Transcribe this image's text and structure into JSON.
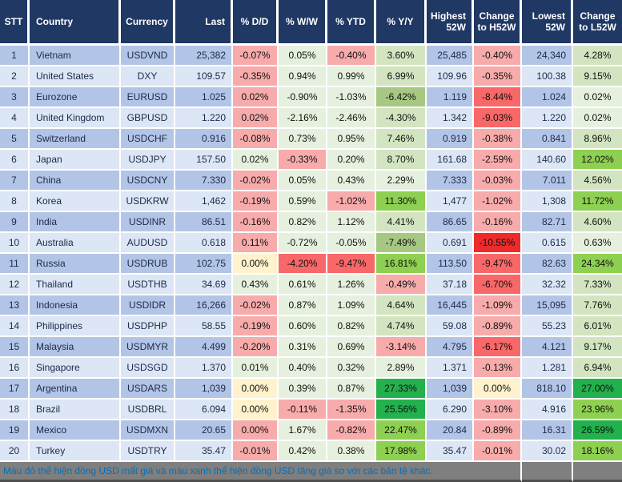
{
  "chart_data": {
    "type": "table",
    "columns": [
      "STT",
      "Country",
      "Currency",
      "Last",
      "% D/D",
      "% W/W",
      "% YTD",
      "% Y/Y",
      "Highest 52W",
      "Change to H52W",
      "Lowest 52W",
      "Change to L52W"
    ],
    "rows": [
      {
        "cells": [
          "1",
          "Vietnam",
          "USDVND",
          "25,382",
          "-0.07%",
          "0.05%",
          "-0.40%",
          "3.60%",
          "25,485",
          "-0.40%",
          "24,340",
          "4.28%"
        ],
        "colors": [
          "",
          "",
          "",
          "",
          "r1",
          "g1",
          "r1",
          "g2",
          "",
          "r1",
          "",
          "g2"
        ]
      },
      {
        "cells": [
          "2",
          "United States",
          "DXY",
          "109.57",
          "-0.35%",
          "0.94%",
          "0.99%",
          "6.99%",
          "109.96",
          "-0.35%",
          "100.38",
          "9.15%"
        ],
        "colors": [
          "",
          "",
          "",
          "",
          "r1",
          "g1",
          "g1",
          "g2",
          "",
          "r1",
          "",
          "g2"
        ]
      },
      {
        "cells": [
          "3",
          "Eurozone",
          "EURUSD",
          "1.025",
          "0.02%",
          "-0.90%",
          "-1.03%",
          "-6.42%",
          "1.119",
          "-8.44%",
          "1.024",
          "0.02%"
        ],
        "colors": [
          "",
          "",
          "",
          "",
          "r1",
          "g1",
          "g1",
          "g3",
          "",
          "r2",
          "",
          "g1"
        ]
      },
      {
        "cells": [
          "4",
          "United Kingdom",
          "GBPUSD",
          "1.220",
          "0.02%",
          "-2.16%",
          "-2.46%",
          "-4.30%",
          "1.342",
          "-9.03%",
          "1.220",
          "0.02%"
        ],
        "colors": [
          "",
          "",
          "",
          "",
          "r1",
          "g1",
          "g1",
          "g2",
          "",
          "r2",
          "",
          "g1"
        ]
      },
      {
        "cells": [
          "5",
          "Switzerland",
          "USDCHF",
          "0.916",
          "-0.08%",
          "0.73%",
          "0.95%",
          "7.46%",
          "0.919",
          "-0.38%",
          "0.841",
          "8.96%"
        ],
        "colors": [
          "",
          "",
          "",
          "",
          "r1",
          "g1",
          "g1",
          "g2",
          "",
          "r1",
          "",
          "g2"
        ]
      },
      {
        "cells": [
          "6",
          "Japan",
          "USDJPY",
          "157.50",
          "0.02%",
          "-0.33%",
          "0.20%",
          "8.70%",
          "161.68",
          "-2.59%",
          "140.60",
          "12.02%"
        ],
        "colors": [
          "",
          "",
          "",
          "",
          "g1",
          "r1",
          "g1",
          "g2",
          "",
          "r1",
          "",
          "g4"
        ]
      },
      {
        "cells": [
          "7",
          "China",
          "USDCNY",
          "7.330",
          "-0.02%",
          "0.05%",
          "0.43%",
          "2.29%",
          "7.333",
          "-0.03%",
          "7.011",
          "4.56%"
        ],
        "colors": [
          "",
          "",
          "",
          "",
          "r1",
          "g1",
          "g1",
          "g1",
          "",
          "r1",
          "",
          "g2"
        ]
      },
      {
        "cells": [
          "8",
          "Korea",
          "USDKRW",
          "1,462",
          "-0.19%",
          "0.59%",
          "-1.02%",
          "11.30%",
          "1,477",
          "-1.02%",
          "1,308",
          "11.72%"
        ],
        "colors": [
          "",
          "",
          "",
          "",
          "r1",
          "g1",
          "r1",
          "g4",
          "",
          "r1",
          "",
          "g4"
        ]
      },
      {
        "cells": [
          "9",
          "India",
          "USDINR",
          "86.51",
          "-0.16%",
          "0.82%",
          "1.12%",
          "4.41%",
          "86.65",
          "-0.16%",
          "82.71",
          "4.60%"
        ],
        "colors": [
          "",
          "",
          "",
          "",
          "r1",
          "g1",
          "g1",
          "g2",
          "",
          "r1",
          "",
          "g2"
        ]
      },
      {
        "cells": [
          "10",
          "Australia",
          "AUDUSD",
          "0.618",
          "0.11%",
          "-0.72%",
          "-0.05%",
          "-7.49%",
          "0.691",
          "-10.55%",
          "0.615",
          "0.63%"
        ],
        "colors": [
          "",
          "",
          "",
          "",
          "r1",
          "g1",
          "g1",
          "g3",
          "",
          "r3",
          "",
          "g1"
        ]
      },
      {
        "cells": [
          "11",
          "Russia",
          "USDRUB",
          "102.75",
          "0.00%",
          "-4.20%",
          "-9.47%",
          "16.81%",
          "113.50",
          "-9.47%",
          "82.63",
          "24.34%"
        ],
        "colors": [
          "",
          "",
          "",
          "",
          "y",
          "r2",
          "r2",
          "g4",
          "",
          "r2",
          "",
          "g4"
        ]
      },
      {
        "cells": [
          "12",
          "Thailand",
          "USDTHB",
          "34.69",
          "0.43%",
          "0.61%",
          "1.26%",
          "-0.49%",
          "37.18",
          "-6.70%",
          "32.32",
          "7.33%"
        ],
        "colors": [
          "",
          "",
          "",
          "",
          "g1",
          "g1",
          "g1",
          "r1",
          "",
          "r2",
          "",
          "g2"
        ]
      },
      {
        "cells": [
          "13",
          "Indonesia",
          "USDIDR",
          "16,266",
          "-0.02%",
          "0.87%",
          "1.09%",
          "4.64%",
          "16,445",
          "-1.09%",
          "15,095",
          "7.76%"
        ],
        "colors": [
          "",
          "",
          "",
          "",
          "r1",
          "g1",
          "g1",
          "g2",
          "",
          "r1",
          "",
          "g2"
        ]
      },
      {
        "cells": [
          "14",
          "Philippines",
          "USDPHP",
          "58.55",
          "-0.19%",
          "0.60%",
          "0.82%",
          "4.74%",
          "59.08",
          "-0.89%",
          "55.23",
          "6.01%"
        ],
        "colors": [
          "",
          "",
          "",
          "",
          "r1",
          "g1",
          "g1",
          "g2",
          "",
          "r1",
          "",
          "g2"
        ]
      },
      {
        "cells": [
          "15",
          "Malaysia",
          "USDMYR",
          "4.499",
          "-0.20%",
          "0.31%",
          "0.69%",
          "-3.14%",
          "4.795",
          "-6.17%",
          "4.121",
          "9.17%"
        ],
        "colors": [
          "",
          "",
          "",
          "",
          "r1",
          "g1",
          "g1",
          "r1",
          "",
          "r2",
          "",
          "g2"
        ]
      },
      {
        "cells": [
          "16",
          "Singapore",
          "USDSGD",
          "1.370",
          "0.01%",
          "0.40%",
          "0.32%",
          "2.89%",
          "1.371",
          "-0.13%",
          "1.281",
          "6.94%"
        ],
        "colors": [
          "",
          "",
          "",
          "",
          "g1",
          "g1",
          "g1",
          "g1",
          "",
          "r1",
          "",
          "g2"
        ]
      },
      {
        "cells": [
          "17",
          "Argentina",
          "USDARS",
          "1,039",
          "0.00%",
          "0.39%",
          "0.87%",
          "27.33%",
          "1,039",
          "0.00%",
          "818.10",
          "27.00%"
        ],
        "colors": [
          "",
          "",
          "",
          "",
          "y",
          "g1",
          "g1",
          "g5",
          "",
          "y",
          "",
          "g5"
        ]
      },
      {
        "cells": [
          "18",
          "Brazil",
          "USDBRL",
          "6.094",
          "0.00%",
          "-0.11%",
          "-1.35%",
          "25.56%",
          "6.290",
          "-3.10%",
          "4.916",
          "23.96%"
        ],
        "colors": [
          "",
          "",
          "",
          "",
          "y",
          "r1",
          "r1",
          "g5",
          "",
          "r1",
          "",
          "g4"
        ]
      },
      {
        "cells": [
          "19",
          "Mexico",
          "USDMXN",
          "20.65",
          "0.00%",
          "1.67%",
          "-0.82%",
          "22.47%",
          "20.84",
          "-0.89%",
          "16.31",
          "26.59%"
        ],
        "colors": [
          "",
          "",
          "",
          "",
          "r1",
          "g1",
          "r1",
          "g4",
          "",
          "r1",
          "",
          "g5"
        ]
      },
      {
        "cells": [
          "20",
          "Turkey",
          "USDTRY",
          "35.47",
          "-0.01%",
          "0.42%",
          "0.38%",
          "17.98%",
          "35.47",
          "-0.01%",
          "30.02",
          "18.16%"
        ],
        "colors": [
          "",
          "",
          "",
          "",
          "r1",
          "g1",
          "g1",
          "g4",
          "",
          "r1",
          "",
          "g4"
        ]
      }
    ],
    "footer_note": "Màu đỏ thể hiện đồng USD mất giá và màu xanh thể hiện đồng USD tăng giá so với các bản tệ khác.",
    "palette": {
      "header_bg": "#1F3864",
      "row_odd": "#B3C5E7",
      "row_even": "#DCE6F4",
      "r1": "#F8ABAB",
      "r2": "#F96868",
      "r3": "#ED2B2B",
      "y": "#FFF2CC",
      "g1": "#E6F0DE",
      "g2": "#D2E5C0",
      "g3": "#A6C883",
      "g4": "#8ED051",
      "g5": "#23B14D",
      "footer_bg": "#7F7F7F",
      "footer_text": "#0070C0"
    }
  }
}
